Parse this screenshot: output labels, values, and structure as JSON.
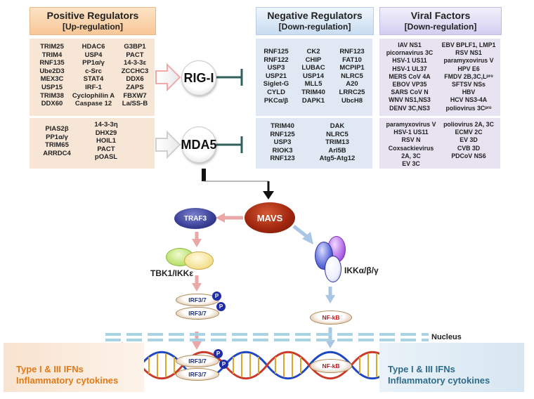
{
  "positive": {
    "title": "Positive Regulators",
    "subtitle": "[Up-regulation]",
    "rig_cols": [
      [
        "TRIM25",
        "TRIM4",
        "RNF135",
        "Ube2D3",
        "MEX3C",
        "USP15",
        "TRIM38",
        "DDX60"
      ],
      [
        "HDAC6",
        "USP4",
        "PP1α/γ",
        "c-Src",
        "STAT4",
        "IRF-1",
        "Cyclophilin A",
        "Caspase 12"
      ],
      [
        "G3BP1",
        "PACT",
        "14-3-3ε",
        "ZCCHC3",
        "DDX6",
        "ZAPS",
        "FBXW7",
        "La/SS-B"
      ]
    ],
    "mda_cols": [
      [
        "PIAS2β",
        "PP1α/γ",
        "TRIM65",
        "ARRDC4"
      ],
      [
        "14-3-3η",
        "DHX29",
        "HOIL1",
        "PACT",
        "pOASL"
      ]
    ]
  },
  "negative": {
    "title": "Negative Regulators",
    "subtitle": "[Down-regulation]",
    "rig_cols": [
      [
        "RNF125",
        "RNF122",
        "USP3",
        "USP21",
        "Siglet-G",
        "CYLD",
        "PKCα/β"
      ],
      [
        "CK2",
        "CHIP",
        "LUBAC",
        "USP14",
        "MLL5",
        "TRIM40",
        "DAPK1"
      ],
      [
        "RNF123",
        "FAT10",
        "MCPIP1",
        "NLRC5",
        "A20",
        "LRRC25",
        "UbcH8"
      ]
    ],
    "mda_cols": [
      [
        "TRIM40",
        "RNF125",
        "USP3",
        "RIOK3",
        "RNF123"
      ],
      [
        "DAK",
        "NLRC5",
        "TRIM13",
        "Arl5B",
        "Atg5-Atg12"
      ]
    ]
  },
  "viral": {
    "title": "Viral Factors",
    "subtitle": "[Down-regulation]",
    "rig_cols": [
      [
        "IAV NS1",
        "picornavirus 3C",
        "HSV-1 US11",
        "HSV-1 UL37",
        "MERS CoV 4A",
        "EBOV VP35",
        "SARS CoV N",
        "WNV NS1,NS3",
        "DENV 3C,NS3"
      ],
      [
        "EBV BPLF1, LMP1",
        "RSV NS1",
        "paramyxovirus V",
        "HPV E6",
        "FMDV 2B,3C,Lᵖʳᵒ",
        "SFTSV NSs",
        "HBV",
        "HCV NS3-4A",
        "poliovirus 3Cᵖʳᵒ"
      ]
    ],
    "mda_cols": [
      [
        "paramyxovirus V",
        "HSV-1 US11",
        "RSV N",
        "Coxsackievirus",
        "2A, 3C",
        "EV 3C"
      ],
      [
        "poliovirus 2A, 3C",
        "ECMV 2C",
        "EV 3D",
        "CVB 3D",
        "PDCoV NS6"
      ]
    ]
  },
  "nodes": {
    "rig": "RIG-I",
    "mda5": "MDA5",
    "mavs": "MAVS",
    "traf3": "TRAF3",
    "tbk1": "TBK1/IKKε",
    "ikk": "IKKα/β/γ",
    "irf_top": "IRF3/7",
    "irf_bottom": "IRF3/7",
    "irf_dna_top": "IRF3/7",
    "irf_dna_bottom": "IRF3/7",
    "nfkb": "NF-kB",
    "nfkb_dna": "NF-kB",
    "p": "P"
  },
  "nucleus": "Nucleus",
  "output_left": {
    "line1": "Type I & III IFNs",
    "line2": "Inflammatory cytokines"
  },
  "output_right": {
    "line1": "Type I & III IFNs",
    "line2": "Inflammatory cytokines"
  },
  "colors": {
    "positive_header": "#fbd7b1",
    "positive_panel": "#f7e6d6",
    "negative_header": "#d6e6f6",
    "negative_panel": "#dfe8f3",
    "viral_header": "#ddd8f3",
    "viral_panel": "#e7e3f1",
    "mavs": "#a3280f",
    "traf3": "#3a3f96",
    "inhibit": "#2f5f5a",
    "orange_text": "#e07a1a",
    "blue_text": "#2f6b8a"
  }
}
